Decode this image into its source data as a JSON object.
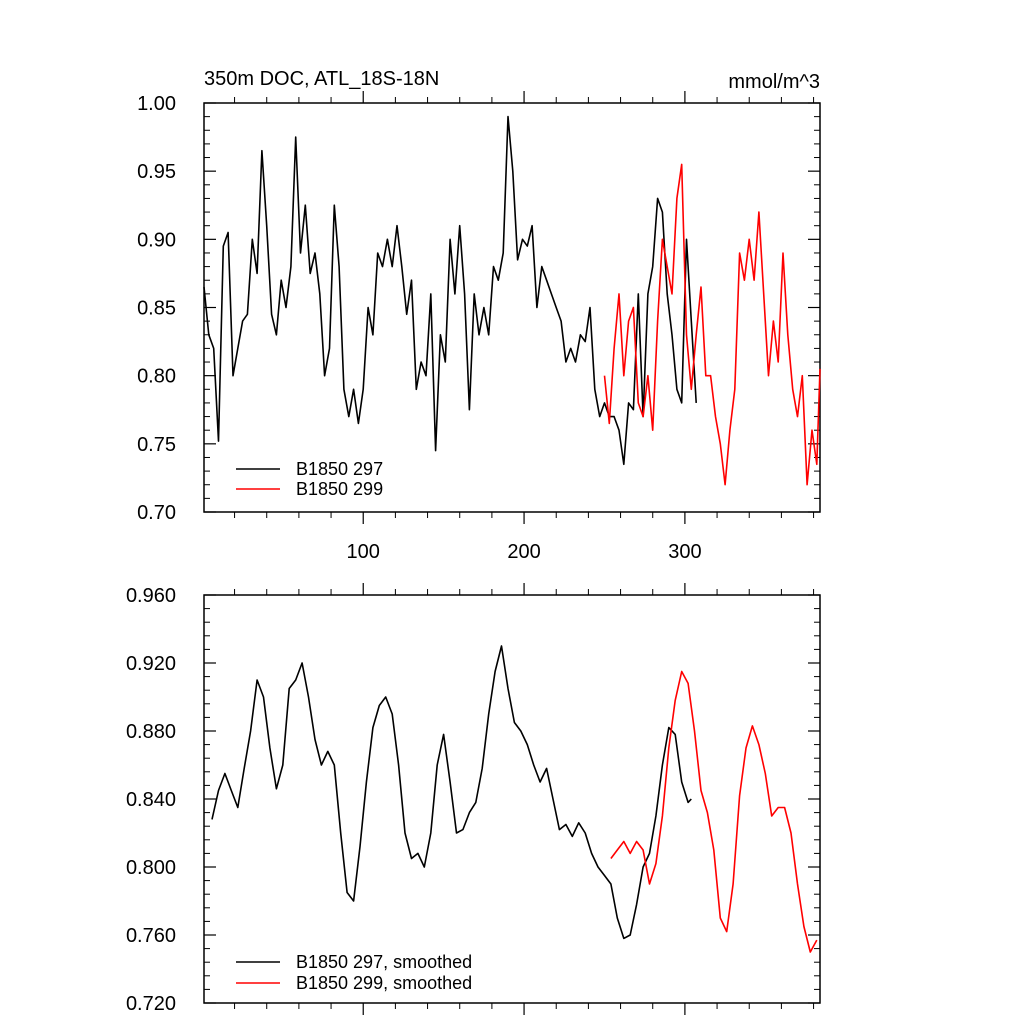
{
  "chart_data": [
    {
      "type": "line",
      "title": "350m DOC, ATL_18S-18N",
      "units": "mmol/m^3",
      "xlabel": "",
      "ylabel": "",
      "xlim": [
        1,
        384
      ],
      "ylim": [
        0.7,
        1.0
      ],
      "xticks": [
        100,
        200,
        300
      ],
      "xtick_labels": [
        "100",
        "200",
        "300"
      ],
      "yticks": [
        0.7,
        0.75,
        0.8,
        0.85,
        0.9,
        0.95,
        1.0
      ],
      "ytick_labels": [
        "0.70",
        "0.75",
        "0.80",
        "0.85",
        "0.90",
        "0.95",
        "1.00"
      ],
      "grid": false,
      "legend_position": "bottom-left",
      "series": [
        {
          "name": "B1850 297",
          "color": "#000000",
          "x": [
            1,
            4,
            7,
            10,
            13,
            16,
            19,
            22,
            25,
            28,
            31,
            34,
            37,
            40,
            43,
            46,
            49,
            52,
            55,
            58,
            61,
            64,
            67,
            70,
            73,
            76,
            79,
            82,
            85,
            88,
            91,
            94,
            97,
            100,
            103,
            106,
            109,
            112,
            115,
            118,
            121,
            124,
            127,
            130,
            133,
            136,
            139,
            142,
            145,
            148,
            151,
            154,
            157,
            160,
            163,
            166,
            169,
            172,
            175,
            178,
            181,
            184,
            187,
            190,
            193,
            196,
            199,
            202,
            205,
            208,
            211,
            214,
            217,
            220,
            223,
            226,
            229,
            232,
            235,
            238,
            241,
            244,
            247,
            250,
            253,
            256,
            259,
            262,
            265,
            268,
            271,
            274,
            277,
            280,
            283,
            286,
            289,
            292,
            295,
            298,
            301,
            304,
            307
          ],
          "values": [
            0.865,
            0.83,
            0.82,
            0.752,
            0.895,
            0.905,
            0.8,
            0.82,
            0.84,
            0.845,
            0.9,
            0.875,
            0.965,
            0.91,
            0.845,
            0.83,
            0.87,
            0.85,
            0.88,
            0.975,
            0.89,
            0.925,
            0.875,
            0.89,
            0.86,
            0.8,
            0.82,
            0.925,
            0.88,
            0.79,
            0.77,
            0.79,
            0.765,
            0.79,
            0.85,
            0.83,
            0.89,
            0.88,
            0.9,
            0.88,
            0.91,
            0.88,
            0.845,
            0.87,
            0.79,
            0.81,
            0.8,
            0.86,
            0.745,
            0.83,
            0.81,
            0.9,
            0.86,
            0.91,
            0.86,
            0.775,
            0.86,
            0.83,
            0.85,
            0.83,
            0.88,
            0.87,
            0.89,
            0.99,
            0.95,
            0.885,
            0.9,
            0.895,
            0.91,
            0.85,
            0.88,
            0.87,
            0.86,
            0.85,
            0.84,
            0.81,
            0.82,
            0.81,
            0.83,
            0.825,
            0.85,
            0.79,
            0.77,
            0.78,
            0.77,
            0.77,
            0.76,
            0.735,
            0.78,
            0.775,
            0.86,
            0.77,
            0.86,
            0.88,
            0.93,
            0.92,
            0.86,
            0.83,
            0.79,
            0.78,
            0.9,
            0.84,
            0.78
          ],
          "legend_label": "B1850 297"
        },
        {
          "name": "B1850 299",
          "color": "#ff0000",
          "x": [
            250,
            253,
            256,
            259,
            262,
            265,
            268,
            271,
            274,
            277,
            280,
            283,
            286,
            289,
            292,
            295,
            298,
            301,
            304,
            307,
            310,
            313,
            316,
            319,
            322,
            325,
            328,
            331,
            334,
            337,
            340,
            343,
            346,
            349,
            352,
            355,
            358,
            361,
            364,
            367,
            370,
            373,
            376,
            379,
            382,
            384
          ],
          "values": [
            0.8,
            0.765,
            0.82,
            0.86,
            0.8,
            0.84,
            0.85,
            0.78,
            0.77,
            0.8,
            0.76,
            0.84,
            0.9,
            0.88,
            0.86,
            0.93,
            0.955,
            0.83,
            0.79,
            0.83,
            0.865,
            0.8,
            0.8,
            0.77,
            0.75,
            0.72,
            0.76,
            0.79,
            0.89,
            0.87,
            0.9,
            0.87,
            0.92,
            0.86,
            0.8,
            0.84,
            0.81,
            0.89,
            0.83,
            0.79,
            0.77,
            0.8,
            0.72,
            0.76,
            0.735,
            0.805
          ],
          "legend_label": "B1850 299"
        }
      ]
    },
    {
      "type": "line",
      "title": "",
      "xlabel": "",
      "ylabel": "",
      "xlim": [
        1,
        384
      ],
      "ylim": [
        0.72,
        0.96
      ],
      "xticks": [
        100,
        200,
        300
      ],
      "xtick_labels": [],
      "yticks": [
        0.72,
        0.76,
        0.8,
        0.84,
        0.88,
        0.92,
        0.96
      ],
      "ytick_labels": [
        "0.720",
        "0.760",
        "0.800",
        "0.840",
        "0.880",
        "0.920",
        "0.960"
      ],
      "grid": false,
      "legend_position": "bottom-left",
      "series": [
        {
          "name": "B1850 297, smoothed",
          "color": "#000000",
          "x": [
            6,
            10,
            14,
            18,
            22,
            26,
            30,
            34,
            38,
            42,
            46,
            50,
            54,
            58,
            62,
            66,
            70,
            74,
            78,
            82,
            86,
            90,
            94,
            98,
            102,
            106,
            110,
            114,
            118,
            122,
            126,
            130,
            134,
            138,
            142,
            146,
            150,
            154,
            158,
            162,
            166,
            170,
            174,
            178,
            182,
            186,
            190,
            194,
            198,
            202,
            206,
            210,
            214,
            218,
            222,
            226,
            230,
            234,
            238,
            242,
            246,
            250,
            254,
            258,
            262,
            266,
            270,
            274,
            278,
            282,
            286,
            290,
            294,
            298,
            302,
            304
          ],
          "values": [
            0.828,
            0.845,
            0.855,
            0.845,
            0.835,
            0.858,
            0.88,
            0.91,
            0.9,
            0.87,
            0.846,
            0.86,
            0.905,
            0.91,
            0.92,
            0.9,
            0.875,
            0.86,
            0.868,
            0.86,
            0.82,
            0.785,
            0.78,
            0.812,
            0.85,
            0.882,
            0.895,
            0.9,
            0.89,
            0.86,
            0.82,
            0.805,
            0.808,
            0.8,
            0.82,
            0.86,
            0.878,
            0.85,
            0.82,
            0.822,
            0.832,
            0.838,
            0.858,
            0.89,
            0.915,
            0.93,
            0.905,
            0.885,
            0.88,
            0.872,
            0.86,
            0.85,
            0.858,
            0.84,
            0.822,
            0.825,
            0.818,
            0.826,
            0.82,
            0.808,
            0.8,
            0.795,
            0.79,
            0.77,
            0.758,
            0.76,
            0.778,
            0.8,
            0.808,
            0.83,
            0.86,
            0.882,
            0.878,
            0.85,
            0.838,
            0.84
          ]
        },
        {
          "name": "B1850 299, smoothed",
          "color": "#ff0000",
          "x": [
            254,
            258,
            262,
            266,
            270,
            274,
            278,
            282,
            286,
            290,
            294,
            298,
            302,
            306,
            310,
            314,
            318,
            322,
            326,
            330,
            334,
            338,
            342,
            346,
            350,
            354,
            358,
            362,
            366,
            370,
            374,
            378,
            382
          ],
          "values": [
            0.805,
            0.81,
            0.815,
            0.808,
            0.815,
            0.81,
            0.79,
            0.802,
            0.83,
            0.87,
            0.898,
            0.915,
            0.908,
            0.88,
            0.845,
            0.832,
            0.81,
            0.77,
            0.762,
            0.79,
            0.842,
            0.87,
            0.883,
            0.872,
            0.855,
            0.83,
            0.835,
            0.835,
            0.82,
            0.79,
            0.765,
            0.75,
            0.757
          ]
        }
      ]
    }
  ]
}
